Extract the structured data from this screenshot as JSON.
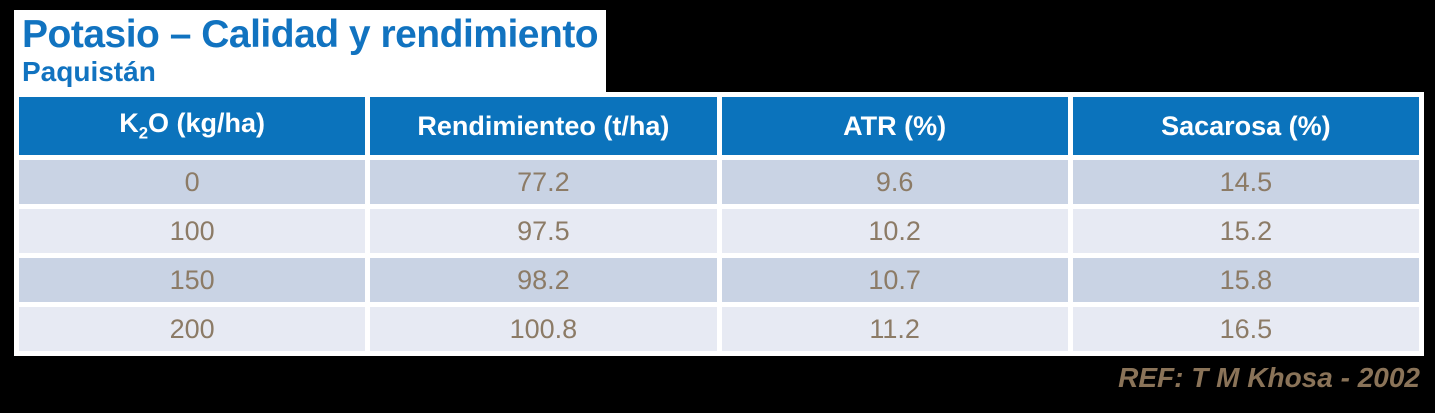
{
  "slide": {
    "title": "Potasio – Calidad y rendimiento",
    "subtitle": "Paquistán",
    "reference": "REF: T M Khosa - 2002"
  },
  "colors": {
    "background": "#000000",
    "surface": "#FFFFFF",
    "title_blue": "#1173C0",
    "header_blue": "#0B73BC",
    "row_dark": "#C9D3E4",
    "row_light": "#E7EAF3",
    "cell_text": "#8C7B66",
    "ref_text": "#8A7358"
  },
  "table": {
    "header": {
      "col1_base": "K",
      "col1_sub": "2",
      "col1_rest": "O (kg/ha)",
      "col2": "Rendimienteo (t/ha)",
      "col3": "ATR (%)",
      "col4": "Sacarosa (%)"
    },
    "rows": [
      [
        "0",
        "77.2",
        "9.6",
        "14.5"
      ],
      [
        "100",
        "97.5",
        "10.2",
        "15.2"
      ],
      [
        "150",
        "98.2",
        "10.7",
        "15.8"
      ],
      [
        "200",
        "100.8",
        "11.2",
        "16.5"
      ]
    ]
  },
  "chart_data": {
    "type": "table",
    "title": "Potasio – Calidad y rendimiento",
    "subtitle": "Paquistán",
    "columns": [
      "K2O (kg/ha)",
      "Rendimienteo (t/ha)",
      "ATR (%)",
      "Sacarosa (%)"
    ],
    "rows": [
      [
        0,
        77.2,
        9.6,
        14.5
      ],
      [
        100,
        97.5,
        10.2,
        15.2
      ],
      [
        150,
        98.2,
        10.7,
        15.8
      ],
      [
        200,
        100.8,
        11.2,
        16.5
      ]
    ],
    "source": "REF: T M Khosa - 2002"
  }
}
